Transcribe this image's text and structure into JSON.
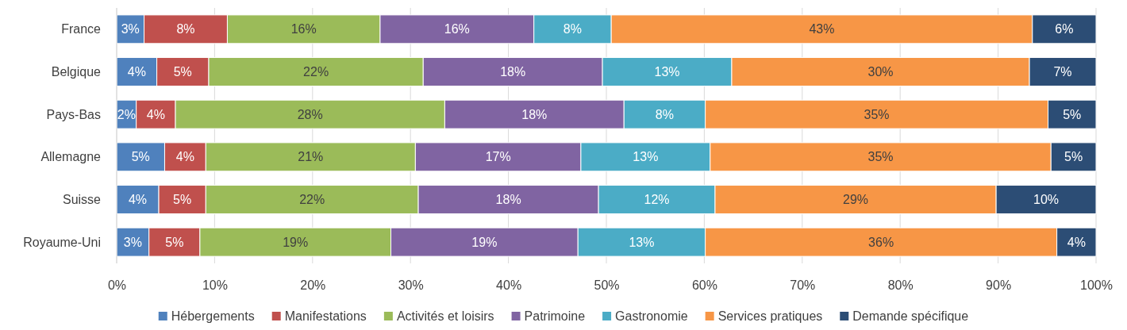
{
  "chart_data": {
    "type": "bar",
    "orientation": "horizontal",
    "stacked": true,
    "categories": [
      "France",
      "Belgique",
      "Pays-Bas",
      "Allemagne",
      "Suisse",
      "Royaume-Uni"
    ],
    "xlim": [
      0,
      100
    ],
    "xticks": [
      {
        "value": 0,
        "label": "0%"
      },
      {
        "value": 10,
        "label": "10%"
      },
      {
        "value": 20,
        "label": "20%"
      },
      {
        "value": 30,
        "label": "30%"
      },
      {
        "value": 40,
        "label": "40%"
      },
      {
        "value": 50,
        "label": "50%"
      },
      {
        "value": 60,
        "label": "60%"
      },
      {
        "value": 70,
        "label": "70%"
      },
      {
        "value": 80,
        "label": "80%"
      },
      {
        "value": 90,
        "label": "90%"
      },
      {
        "value": 100,
        "label": "100%"
      }
    ],
    "grid": "x",
    "legend": "bottom",
    "series": [
      {
        "name": "Hébergements",
        "color": "#4f81bd",
        "values": [
          2.8,
          4.1,
          2.0,
          4.9,
          4.3,
          3.3
        ],
        "value_labels": [
          "3%",
          "4%",
          "2%",
          "5%",
          "4%",
          "3%"
        ]
      },
      {
        "name": "Manifestations",
        "color": "#c0504d",
        "values": [
          8.5,
          5.3,
          4.0,
          4.2,
          4.8,
          5.2
        ],
        "value_labels": [
          "8%",
          "5%",
          "4%",
          "4%",
          "5%",
          "5%"
        ]
      },
      {
        "name": "Activités et loisirs",
        "color": "#9bbb59",
        "values": [
          15.6,
          21.9,
          27.5,
          21.4,
          21.7,
          19.5
        ],
        "value_labels": [
          "16%",
          "22%",
          "28%",
          "21%",
          "22%",
          "19%"
        ]
      },
      {
        "name": "Patrimoine",
        "color": "#8064a2",
        "values": [
          15.7,
          18.3,
          18.3,
          16.9,
          18.4,
          19.1
        ],
        "value_labels": [
          "16%",
          "18%",
          "18%",
          "17%",
          "18%",
          "19%"
        ]
      },
      {
        "name": "Gastronomie",
        "color": "#4bacc6",
        "values": [
          7.9,
          13.2,
          8.3,
          13.2,
          11.9,
          13.0
        ],
        "value_labels": [
          "8%",
          "13%",
          "8%",
          "13%",
          "12%",
          "13%"
        ]
      },
      {
        "name": "Services pratiques",
        "color": "#f79646",
        "values": [
          43.0,
          30.4,
          35.0,
          34.8,
          28.7,
          35.9
        ],
        "value_labels": [
          "43%",
          "30%",
          "35%",
          "35%",
          "29%",
          "36%"
        ]
      },
      {
        "name": "Demande spécifique",
        "color": "#2c4d75",
        "values": [
          6.5,
          6.8,
          4.9,
          4.6,
          10.2,
          4.0
        ],
        "value_labels": [
          "6%",
          "7%",
          "5%",
          "5%",
          "10%",
          "4%"
        ]
      }
    ]
  }
}
